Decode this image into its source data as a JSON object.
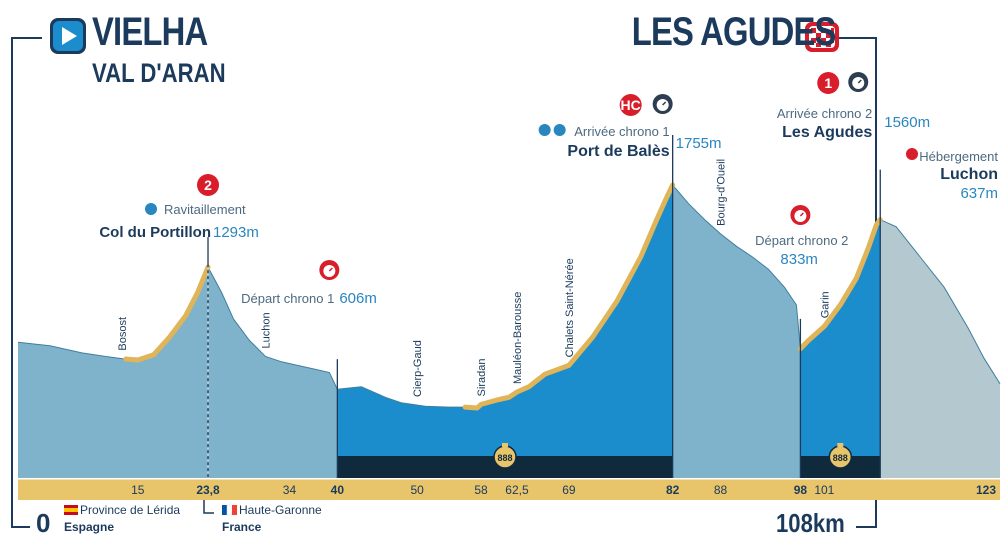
{
  "start": {
    "name": "VIELHA",
    "subtitle": "VAL D'ARAN",
    "km": "0",
    "icon": "play-icon"
  },
  "finish": {
    "name": "LES AGUDES",
    "total": "108km",
    "icon": "checkered-flag-icon"
  },
  "borders": {
    "left": {
      "flag_color": "#c60b1e",
      "region": "Province de Lérida",
      "country": "Espagne"
    },
    "right": {
      "flag_color": "#0055a4",
      "region": "Haute-Garonne",
      "country": "France"
    }
  },
  "colors": {
    "sky": "#7fb3cc",
    "timed": "#1b8ccc",
    "after": "#b3c8cf",
    "road_band": "#e8c46a",
    "tunnel": "#0e2a3c",
    "climb_edge": "#e0b458",
    "text_dark": "#1b3a5c",
    "text_blue": "#2a86bf",
    "cat_red": "#d81e2a"
  },
  "chart_data": {
    "type": "area",
    "xlim": [
      0,
      123
    ],
    "ylim": [
      400,
      1800
    ],
    "profile": [
      [
        0,
        870
      ],
      [
        4,
        850
      ],
      [
        8,
        810
      ],
      [
        11,
        790
      ],
      [
        13,
        778
      ],
      [
        15,
        770
      ],
      [
        17,
        800
      ],
      [
        19,
        900
      ],
      [
        21,
        1020
      ],
      [
        22.5,
        1150
      ],
      [
        23.8,
        1293
      ],
      [
        25.5,
        1150
      ],
      [
        27,
        1000
      ],
      [
        29,
        880
      ],
      [
        31,
        790
      ],
      [
        33,
        760
      ],
      [
        35,
        740
      ],
      [
        37,
        720
      ],
      [
        39,
        700
      ],
      [
        40,
        606
      ],
      [
        43,
        620
      ],
      [
        46,
        560
      ],
      [
        48,
        530
      ],
      [
        51,
        510
      ],
      [
        54,
        505
      ],
      [
        56,
        505
      ],
      [
        57.5,
        500
      ],
      [
        58,
        520
      ],
      [
        60,
        545
      ],
      [
        61.5,
        560
      ],
      [
        62.5,
        590
      ],
      [
        64,
        620
      ],
      [
        66,
        690
      ],
      [
        69,
        740
      ],
      [
        72,
        900
      ],
      [
        75,
        1100
      ],
      [
        78,
        1350
      ],
      [
        80,
        1560
      ],
      [
        81.3,
        1690
      ],
      [
        82,
        1755
      ],
      [
        84,
        1650
      ],
      [
        86,
        1560
      ],
      [
        88,
        1480
      ],
      [
        90,
        1410
      ],
      [
        92,
        1350
      ],
      [
        94,
        1280
      ],
      [
        96,
        1180
      ],
      [
        97.5,
        1080
      ],
      [
        98,
        833
      ],
      [
        99,
        880
      ],
      [
        101,
        960
      ],
      [
        103,
        1080
      ],
      [
        105,
        1230
      ],
      [
        106.5,
        1400
      ],
      [
        107.5,
        1530
      ],
      [
        108,
        1560
      ],
      [
        110,
        1520
      ],
      [
        113,
        1350
      ],
      [
        116,
        1180
      ],
      [
        119,
        950
      ],
      [
        121,
        780
      ],
      [
        123,
        637
      ]
    ],
    "timed_sections": [
      [
        40,
        82
      ],
      [
        98,
        108
      ]
    ],
    "after_finish": [
      108,
      123
    ],
    "km_ticks": [
      {
        "km": 15,
        "label": "15",
        "bold": false
      },
      {
        "km": 23.8,
        "label": "23,8",
        "bold": true
      },
      {
        "km": 34,
        "label": "34",
        "bold": false
      },
      {
        "km": 40,
        "label": "40",
        "bold": true
      },
      {
        "km": 50,
        "label": "50",
        "bold": false
      },
      {
        "km": 58,
        "label": "58",
        "bold": false
      },
      {
        "km": 62.5,
        "label": "62,5",
        "bold": false
      },
      {
        "km": 69,
        "label": "69",
        "bold": false
      },
      {
        "km": 82,
        "label": "82",
        "bold": true
      },
      {
        "km": 88,
        "label": "88",
        "bold": false
      },
      {
        "km": 98,
        "label": "98",
        "bold": true
      },
      {
        "km": 101,
        "label": "101",
        "bold": false
      },
      {
        "km": 123,
        "label": "123",
        "bold": true
      }
    ],
    "towns": [
      {
        "km": 13,
        "name": "Bosost"
      },
      {
        "km": 31,
        "name": "Luchon"
      },
      {
        "km": 50,
        "name": "Cierp-Gaud"
      },
      {
        "km": 58,
        "name": "Siradan"
      },
      {
        "km": 62.5,
        "name": "Mauléon-Barousse"
      },
      {
        "km": 69,
        "name": "Chalets Saint-Nérée"
      },
      {
        "km": 88,
        "name": "Bourg-d'Oueil"
      },
      {
        "km": 101,
        "name": "Garin"
      }
    ],
    "points": [
      {
        "km": 23.8,
        "alt": 1293,
        "name": "Col du Portillon",
        "alt_label": "1293m",
        "label": "Ravitaillement",
        "cat": "2",
        "icon": "feeding-icon"
      },
      {
        "km": 40,
        "alt": 606,
        "name": "",
        "alt_label": "606m",
        "label": "Départ chrono 1",
        "cat": "",
        "icon": "stopwatch-start-icon"
      },
      {
        "km": 82,
        "alt": 1755,
        "name": "Port de Balès",
        "alt_label": "1755m",
        "label": "Arrivée chrono 1",
        "cat": "HC",
        "icon": "stopwatch-finish-icon"
      },
      {
        "km": 98,
        "alt": 833,
        "name": "",
        "alt_label": "833m",
        "label": "Départ chrono 2",
        "cat": "",
        "icon": "stopwatch-start-icon"
      },
      {
        "km": 108,
        "alt": 1560,
        "name": "Les Agudes",
        "alt_label": "1560m",
        "label": "Arrivée chrono 2",
        "cat": "1",
        "icon": "stopwatch-finish-icon"
      },
      {
        "km": 123,
        "alt": 637,
        "name": "Luchon",
        "alt_label": "637m",
        "label": "Hébergement",
        "cat": "",
        "icon": "bed-icon"
      }
    ],
    "stopwatches": [
      {
        "km": 61,
        "label": "888"
      },
      {
        "km": 103,
        "label": "888"
      }
    ]
  }
}
